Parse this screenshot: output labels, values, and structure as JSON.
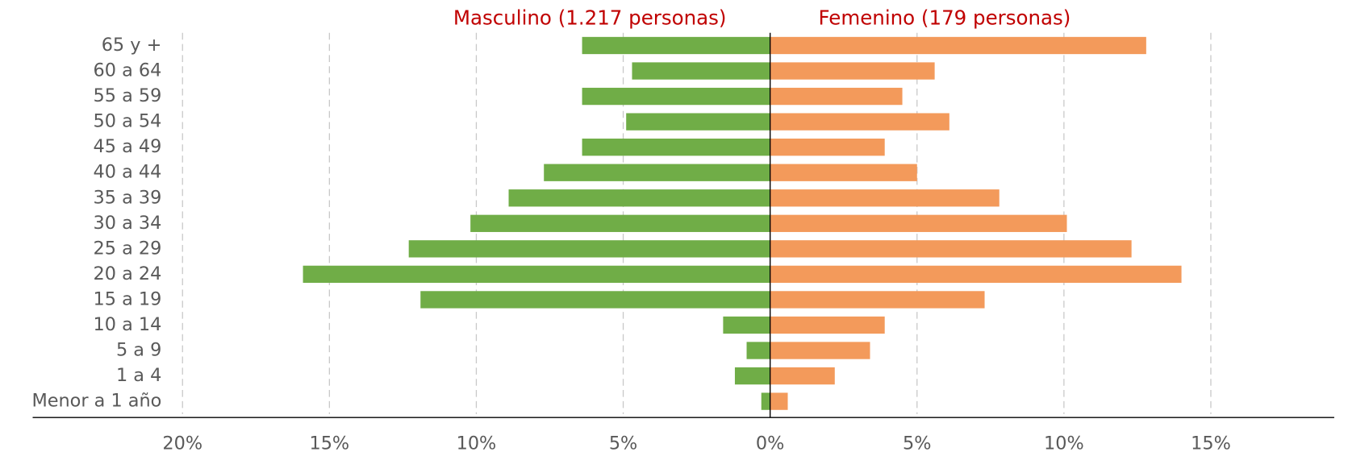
{
  "chart_data": {
    "type": "bar",
    "orientation": "horizontal",
    "categories": [
      "65 y +",
      "60 a 64",
      "55 a 59",
      "50 a 54",
      "45 a 49",
      "40 a 44",
      "35 a 39",
      "30 a 34",
      "25 a 29",
      "20 a 24",
      "15 a 19",
      "10 a 14",
      "5 a 9",
      "1 a 4",
      "Menor a 1 año"
    ],
    "series": [
      {
        "name": "Masculino (1.217 personas)",
        "color": "#70ad47",
        "values": [
          -6.4,
          -4.7,
          -6.4,
          -4.9,
          -6.4,
          -7.7,
          -8.9,
          -10.2,
          -12.3,
          -15.9,
          -11.9,
          -1.6,
          -0.8,
          -1.2,
          -0.3
        ]
      },
      {
        "name": "Femenino (179 personas)",
        "color": "#f39a5b",
        "values": [
          12.8,
          5.6,
          4.5,
          6.1,
          3.9,
          5.0,
          7.8,
          10.1,
          12.3,
          14.0,
          7.3,
          3.9,
          3.4,
          2.2,
          0.6
        ]
      }
    ],
    "xlim": [
      -25.1,
      19.2
    ],
    "xticks": [
      {
        "value": -20,
        "label": "20%"
      },
      {
        "value": -15,
        "label": "15%"
      },
      {
        "value": -10,
        "label": "10%"
      },
      {
        "value": -5,
        "label": "5%"
      },
      {
        "value": 0,
        "label": "0%"
      },
      {
        "value": 5,
        "label": "5%"
      },
      {
        "value": 10,
        "label": "10%"
      },
      {
        "value": 15,
        "label": "15%"
      }
    ],
    "grid": true
  }
}
